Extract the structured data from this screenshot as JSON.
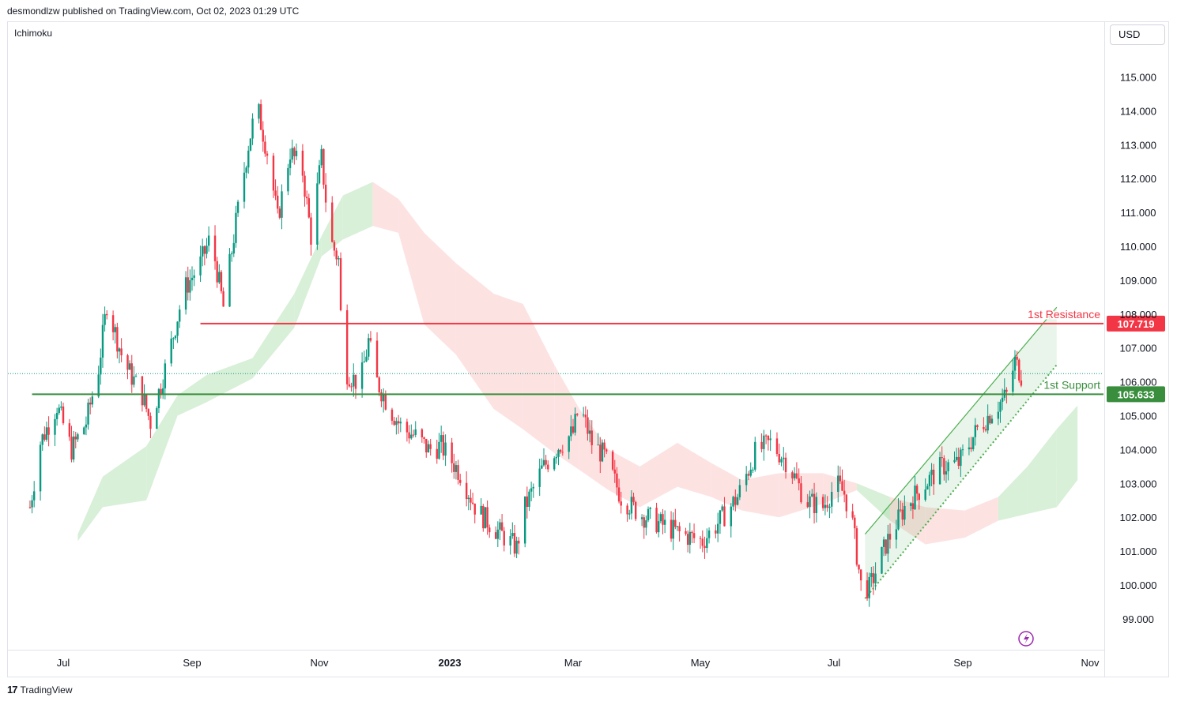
{
  "header": {
    "publisher_line": "desmondlzw published on TradingView.com, Oct 02, 2023 01:29 UTC"
  },
  "indicator_label": "Ichimoku",
  "currency_label": "USD",
  "footer": {
    "brand": "TradingView",
    "logo_icon": "tradingview-logo-icon"
  },
  "colors": {
    "up": "#089981",
    "down": "#f23645",
    "resistance": "#f23645",
    "support": "#388e3c",
    "cloud_bull": "#d8efd8",
    "cloud_bear": "#fde2e2",
    "channel": "#4caf50"
  },
  "chart_data": {
    "type": "candlestick",
    "symbol_currency": "USD",
    "y_axis": {
      "ticks": [
        "99.000",
        "100.000",
        "101.000",
        "102.000",
        "103.000",
        "104.000",
        "105.000",
        "106.000",
        "107.000",
        "108.000",
        "109.000",
        "110.000",
        "111.000",
        "112.000",
        "113.000",
        "114.000",
        "115.000"
      ],
      "ylim": [
        98.2,
        115.8
      ]
    },
    "x_axis": {
      "ticks": [
        "Jul",
        "Sep",
        "Nov",
        "2023",
        "Mar",
        "May",
        "Jul",
        "Sep",
        "Nov"
      ]
    },
    "price_path": [
      [
        "2022-06-15",
        102.3
      ],
      [
        "2022-06-20",
        104.2
      ],
      [
        "2022-06-28",
        105.3
      ],
      [
        "2022-07-05",
        104.0
      ],
      [
        "2022-07-12",
        104.8
      ],
      [
        "2022-07-18",
        106.4
      ],
      [
        "2022-07-22",
        108.3
      ],
      [
        "2022-07-30",
        106.6
      ],
      [
        "2022-08-08",
        105.6
      ],
      [
        "2022-08-12",
        104.8
      ],
      [
        "2022-08-20",
        106.6
      ],
      [
        "2022-08-28",
        108.7
      ],
      [
        "2022-09-05",
        109.5
      ],
      [
        "2022-09-10",
        110.3
      ],
      [
        "2022-09-16",
        108.2
      ],
      [
        "2022-09-22",
        110.7
      ],
      [
        "2022-09-28",
        113.0
      ],
      [
        "2022-10-02",
        114.2
      ],
      [
        "2022-10-08",
        112.5
      ],
      [
        "2022-10-12",
        110.8
      ],
      [
        "2022-10-18",
        112.8
      ],
      [
        "2022-10-24",
        112.2
      ],
      [
        "2022-10-28",
        110.3
      ],
      [
        "2022-11-02",
        112.6
      ],
      [
        "2022-11-06",
        110.2
      ],
      [
        "2022-11-10",
        109.6
      ],
      [
        "2022-11-12",
        106.4
      ],
      [
        "2022-11-20",
        105.9
      ],
      [
        "2022-11-24",
        107.2
      ],
      [
        "2022-11-28",
        106.0
      ],
      [
        "2022-12-04",
        105.2
      ],
      [
        "2022-12-10",
        104.6
      ],
      [
        "2022-12-16",
        104.4
      ],
      [
        "2022-12-22",
        104.0
      ],
      [
        "2022-12-28",
        104.1
      ],
      [
        "2023-01-06",
        103.3
      ],
      [
        "2023-01-14",
        102.2
      ],
      [
        "2023-01-22",
        101.7
      ],
      [
        "2023-02-02",
        101.1
      ],
      [
        "2023-02-06",
        102.3
      ],
      [
        "2023-02-14",
        103.4
      ],
      [
        "2023-02-22",
        104.1
      ],
      [
        "2023-03-01",
        104.5
      ],
      [
        "2023-03-04",
        105.3
      ],
      [
        "2023-03-10",
        104.2
      ],
      [
        "2023-03-16",
        103.8
      ],
      [
        "2023-03-24",
        102.6
      ],
      [
        "2023-04-02",
        102.1
      ],
      [
        "2023-04-12",
        101.8
      ],
      [
        "2023-04-22",
        101.5
      ],
      [
        "2023-05-02",
        101.3
      ],
      [
        "2023-05-10",
        101.9
      ],
      [
        "2023-05-18",
        102.6
      ],
      [
        "2023-05-26",
        103.9
      ],
      [
        "2023-06-02",
        104.2
      ],
      [
        "2023-06-10",
        103.6
      ],
      [
        "2023-06-18",
        102.5
      ],
      [
        "2023-06-26",
        102.3
      ],
      [
        "2023-07-02",
        103.0
      ],
      [
        "2023-07-06",
        102.7
      ],
      [
        "2023-07-10",
        101.8
      ],
      [
        "2023-07-14",
        100.0
      ],
      [
        "2023-07-18",
        99.9
      ],
      [
        "2023-07-26",
        101.2
      ],
      [
        "2023-08-04",
        102.3
      ],
      [
        "2023-08-14",
        103.0
      ],
      [
        "2023-08-22",
        103.5
      ],
      [
        "2023-08-30",
        103.6
      ],
      [
        "2023-09-08",
        104.6
      ],
      [
        "2023-09-16",
        105.2
      ],
      [
        "2023-09-22",
        105.6
      ],
      [
        "2023-09-26",
        106.6
      ],
      [
        "2023-09-29",
        106.2
      ]
    ],
    "horizontal_levels": [
      {
        "label": "1st Resistance",
        "value": 107.719,
        "value_label": "107.719",
        "color": "#f23645",
        "from": "2022-09-05"
      },
      {
        "label": "1st Support",
        "value": 105.633,
        "value_label": "105.633",
        "color": "#388e3c",
        "from": "2022-06-16"
      }
    ],
    "channel": {
      "upper": [
        [
          "2023-07-16",
          101.5
        ],
        [
          "2023-10-16",
          108.2
        ]
      ],
      "lower": [
        [
          "2023-07-16",
          99.6
        ],
        [
          "2023-10-16",
          106.5
        ]
      ]
    },
    "cloud_upper": [
      [
        "2022-07-08",
        101.5
      ],
      [
        "2022-07-20",
        103.2
      ],
      [
        "2022-08-10",
        104.1
      ],
      [
        "2022-08-25",
        105.6
      ],
      [
        "2022-09-08",
        106.2
      ],
      [
        "2022-09-30",
        106.7
      ],
      [
        "2022-10-20",
        108.6
      ],
      [
        "2022-11-02",
        110.3
      ],
      [
        "2022-11-12",
        111.5
      ],
      [
        "2022-11-26",
        111.9
      ],
      [
        "2022-12-08",
        111.4
      ],
      [
        "2022-12-20",
        110.4
      ],
      [
        "2023-01-04",
        109.5
      ],
      [
        "2023-01-22",
        108.6
      ],
      [
        "2023-02-05",
        108.3
      ],
      [
        "2023-02-20",
        106.5
      ],
      [
        "2023-03-04",
        105.2
      ],
      [
        "2023-03-18",
        104.0
      ],
      [
        "2023-04-02",
        103.5
      ],
      [
        "2023-04-20",
        104.2
      ],
      [
        "2023-05-06",
        103.6
      ],
      [
        "2023-05-20",
        103.1
      ],
      [
        "2023-06-06",
        103.3
      ],
      [
        "2023-06-26",
        103.3
      ],
      [
        "2023-07-12",
        103.0
      ],
      [
        "2023-07-28",
        102.6
      ],
      [
        "2023-08-14",
        102.3
      ],
      [
        "2023-09-02",
        102.2
      ],
      [
        "2023-09-18",
        102.6
      ],
      [
        "2023-10-02",
        103.5
      ],
      [
        "2023-10-16",
        104.6
      ],
      [
        "2023-10-26",
        105.3
      ]
    ],
    "cloud_lower": [
      [
        "2022-07-08",
        101.3
      ],
      [
        "2022-07-20",
        102.3
      ],
      [
        "2022-08-10",
        102.5
      ],
      [
        "2022-08-25",
        105.0
      ],
      [
        "2022-09-08",
        105.4
      ],
      [
        "2022-09-30",
        106.1
      ],
      [
        "2022-10-20",
        107.6
      ],
      [
        "2022-11-02",
        109.7
      ],
      [
        "2022-11-12",
        110.2
      ],
      [
        "2022-11-26",
        110.6
      ],
      [
        "2022-12-08",
        110.4
      ],
      [
        "2022-12-20",
        107.7
      ],
      [
        "2023-01-04",
        106.8
      ],
      [
        "2023-01-22",
        105.2
      ],
      [
        "2023-02-05",
        104.6
      ],
      [
        "2023-02-20",
        103.9
      ],
      [
        "2023-03-04",
        103.4
      ],
      [
        "2023-03-18",
        102.8
      ],
      [
        "2023-04-02",
        102.3
      ],
      [
        "2023-04-20",
        102.9
      ],
      [
        "2023-05-06",
        102.6
      ],
      [
        "2023-05-20",
        102.2
      ],
      [
        "2023-06-06",
        102.0
      ],
      [
        "2023-06-26",
        102.4
      ],
      [
        "2023-07-12",
        102.8
      ],
      [
        "2023-07-28",
        101.9
      ],
      [
        "2023-08-14",
        101.2
      ],
      [
        "2023-09-02",
        101.4
      ],
      [
        "2023-09-18",
        101.9
      ],
      [
        "2023-10-02",
        102.1
      ],
      [
        "2023-10-16",
        102.3
      ],
      [
        "2023-10-26",
        103.1
      ]
    ]
  }
}
